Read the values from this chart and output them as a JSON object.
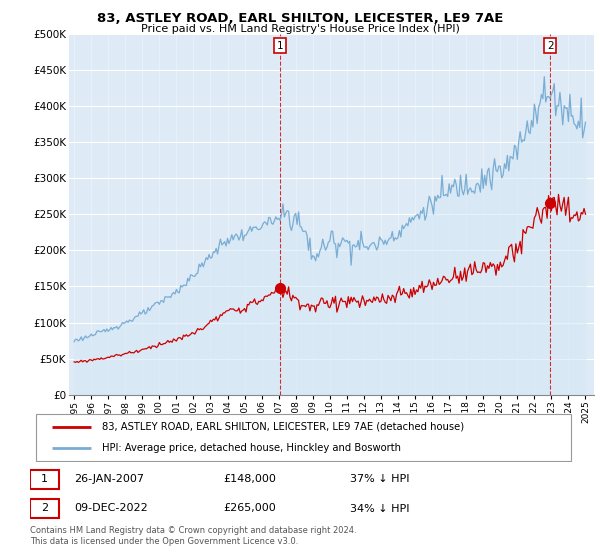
{
  "title": "83, ASTLEY ROAD, EARL SHILTON, LEICESTER, LE9 7AE",
  "subtitle": "Price paid vs. HM Land Registry's House Price Index (HPI)",
  "legend_line1": "83, ASTLEY ROAD, EARL SHILTON, LEICESTER, LE9 7AE (detached house)",
  "legend_line2": "HPI: Average price, detached house, Hinckley and Bosworth",
  "annotation1_date": "26-JAN-2007",
  "annotation1_price": "£148,000",
  "annotation1_hpi": "37% ↓ HPI",
  "annotation2_date": "09-DEC-2022",
  "annotation2_price": "£265,000",
  "annotation2_hpi": "34% ↓ HPI",
  "footer": "Contains HM Land Registry data © Crown copyright and database right 2024.\nThis data is licensed under the Open Government Licence v3.0.",
  "sale1_x": 2007.07,
  "sale1_y": 148000,
  "sale2_x": 2022.94,
  "sale2_y": 265000,
  "red_color": "#cc0000",
  "blue_color": "#7aadd4",
  "blue_fill": "#d6e8f5",
  "vline_color": "#cc0000",
  "grid_color": "#c8d8e8",
  "background_color": "#ffffff",
  "plot_bg": "#deeaf5",
  "ylim": [
    0,
    500000
  ],
  "xlim_left": 1994.7,
  "xlim_right": 2025.5
}
